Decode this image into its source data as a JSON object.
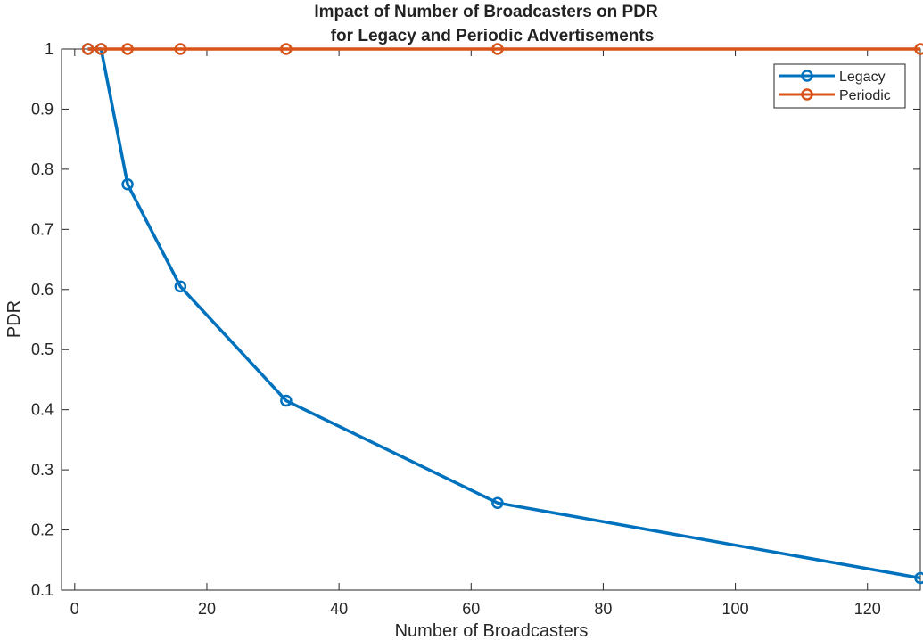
{
  "chart_data": {
    "type": "line",
    "title_lines": [
      "Impact of Number of Broadcasters on PDR",
      "for Legacy and Periodic Advertisements"
    ],
    "xlabel": "Number of Broadcasters",
    "ylabel": "PDR",
    "xlim": [
      -2,
      128
    ],
    "ylim": [
      0.1,
      1.0
    ],
    "x_ticks": [
      0,
      20,
      40,
      60,
      80,
      100,
      120
    ],
    "x_tick_labels": [
      "0",
      "20",
      "40",
      "60",
      "80",
      "100",
      "120"
    ],
    "y_ticks": [
      0.1,
      0.2,
      0.3,
      0.4,
      0.5,
      0.6,
      0.7,
      0.8,
      0.9,
      1.0
    ],
    "y_tick_labels": [
      "0.1",
      "0.2",
      "0.3",
      "0.4",
      "0.5",
      "0.6",
      "0.7",
      "0.8",
      "0.9",
      "1"
    ],
    "grid": false,
    "legend_position": "top-right",
    "series": [
      {
        "name": "Legacy",
        "color": "#0072BD",
        "marker": "circle",
        "x": [
          2,
          4,
          8,
          16,
          32,
          64,
          128
        ],
        "y": [
          1.0,
          1.0,
          0.775,
          0.605,
          0.415,
          0.245,
          0.12
        ]
      },
      {
        "name": "Periodic",
        "color": "#D95319",
        "marker": "circle",
        "x": [
          2,
          4,
          8,
          16,
          32,
          64,
          128
        ],
        "y": [
          1.0,
          1.0,
          1.0,
          1.0,
          1.0,
          1.0,
          1.0
        ]
      }
    ]
  }
}
